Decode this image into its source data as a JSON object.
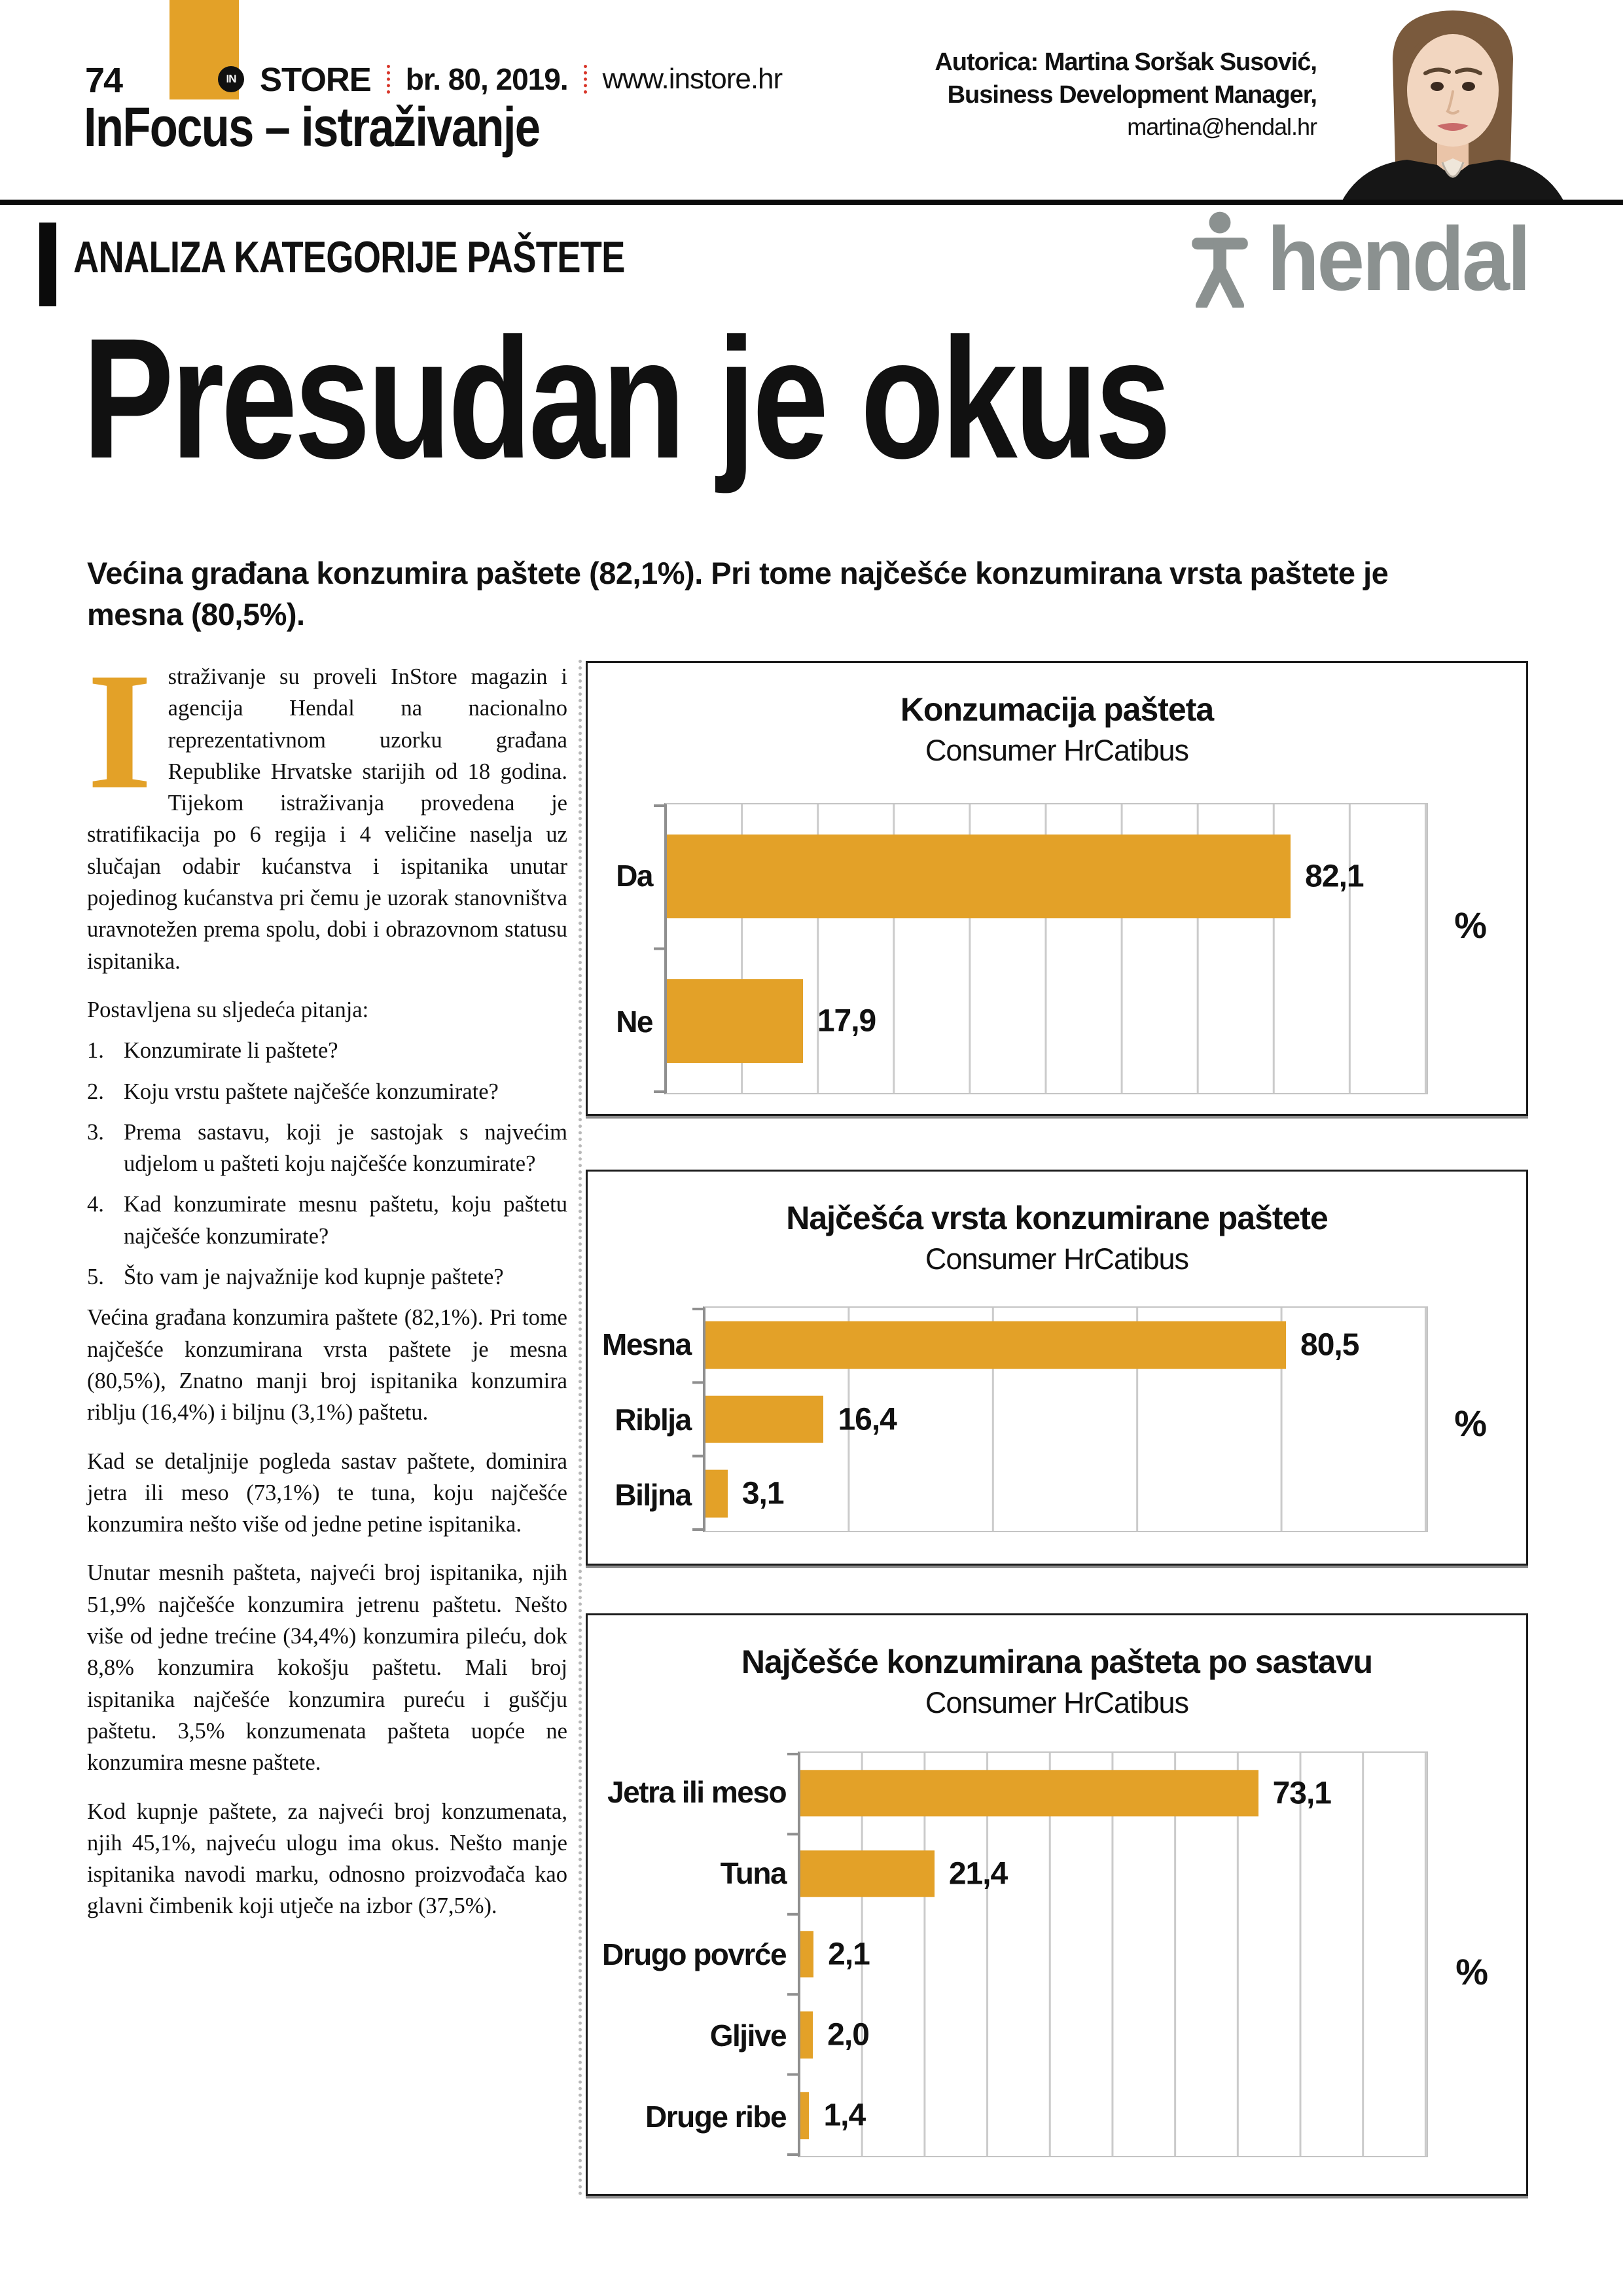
{
  "page": {
    "number": "74",
    "in_badge": "IN",
    "magazine": "STORE",
    "issue": "br. 80, 2019.",
    "website": "www.instore.hr",
    "section": "InFocus – istraživanje",
    "kicker": "ANALIZA KATEGORIJE PAŠTETE",
    "headline": "Presudan je okus",
    "lead": "Većina građana konzumira paštete (82,1%). Pri tome najčešće konzumirana vrsta paštete je mesna (80,5%)."
  },
  "author": {
    "line1": "Autorica: Martina Soršak Susović,",
    "line2": "Business Development Manager,",
    "email": "martina@hendal.hr"
  },
  "brand": {
    "name": "hendal",
    "gray": "#8B9190",
    "orange": "#E3A128",
    "red_dots": "#D8362A"
  },
  "article": {
    "dropcap": "I",
    "p1": "straživanje su proveli InStore magazin i agencija Hendal na nacionalno reprezentativnom uzorku građana Republike Hrvatske starijih od 18 godina. Tijekom istraživanja provedena je stratifikacija po 6 regija i 4 veličine naselja uz slučajan odabir kućanstva i ispitanika unutar pojedinog kućanstva pri čemu je uzorak stanovništva uravnotežen prema spolu, dobi i obrazovnom statusu ispitanika.",
    "questions_intro": "Postavljena su sljedeća pitanja:",
    "questions": [
      {
        "num": "1.",
        "text": "Konzumirate li paštete?"
      },
      {
        "num": "2.",
        "text": "Koju vrstu paštete najčešće konzumirate?"
      },
      {
        "num": "3.",
        "text": "Prema sastavu, koji je sastojak s najvećim udjelom u pašteti koju najčešće konzumirate?"
      },
      {
        "num": "4.",
        "text": "Kad konzumirate mesnu paštetu, koju paštetu najčešće konzumirate?"
      },
      {
        "num": "5.",
        "text": "Što vam je najvažnije kod kupnje paštete?"
      }
    ],
    "p2": "Većina građana konzumira paštete (82,1%). Pri tome najčešće konzumirana vrsta paštete je mesna (80,5%), Znatno manji broj ispitanika konzumira riblju (16,4%) i biljnu (3,1%) paštetu.",
    "p3": "Kad se detaljnije pogleda sastav paštete, dominira jetra ili meso (73,1%) te tuna, koju najčešće konzumira nešto više od jedne petine ispitanika.",
    "p4": "Unutar mesnih pašteta, najveći broj ispitanika, njih 51,9% najčešće konzumira jetrenu paštetu. Nešto više od jedne trećine (34,4%) konzumira pileću, dok 8,8% konzumira kokošju paštetu. Mali broj ispitanika najčešće konzumira pureću i guščju paštetu. 3,5% konzumenata pašteta uopće ne konzumira mesne paštete.",
    "p5": "Kod kupnje paštete, za najveći broj konzumenata, njih 45,1%, najveću ulogu ima okus. Nešto manje ispitanika navodi marku, odnosno proizvođača kao glavni čimbenik koji utječe na izbor (37,5%)."
  },
  "chart_data": [
    {
      "type": "bar",
      "orientation": "horizontal",
      "title": "Konzumacija pašteta",
      "subtitle": "Consumer HrCatibus",
      "categories": [
        "Da",
        "Ne"
      ],
      "values": [
        82.1,
        17.9
      ],
      "value_labels": [
        "82,1",
        "17,9"
      ],
      "xlabel": "%",
      "xlim": [
        0,
        100
      ],
      "gridline_step": 10,
      "grid": true,
      "legend": false,
      "bar_color": "#E3A128"
    },
    {
      "type": "bar",
      "orientation": "horizontal",
      "title": "Najčešća vrsta konzumirane paštete",
      "subtitle": "Consumer HrCatibus",
      "categories": [
        "Mesna",
        "Riblja",
        "Biljna"
      ],
      "values": [
        80.5,
        16.4,
        3.1
      ],
      "value_labels": [
        "80,5",
        "16,4",
        "3,1"
      ],
      "xlabel": "%",
      "xlim": [
        0,
        100
      ],
      "gridline_step": 20,
      "grid": true,
      "legend": false,
      "bar_color": "#E3A128"
    },
    {
      "type": "bar",
      "orientation": "horizontal",
      "title": "Najčešće konzumirana pašteta po sastavu",
      "subtitle": "Consumer HrCatibus",
      "categories": [
        "Jetra ili meso",
        "Tuna",
        "Drugo povrće",
        "Gljive",
        "Druge ribe"
      ],
      "values": [
        73.1,
        21.4,
        2.1,
        2.0,
        1.4
      ],
      "value_labels": [
        "73,1",
        "21,4",
        "2,1",
        "2,0",
        "1,4"
      ],
      "xlabel": "%",
      "xlim": [
        0,
        100
      ],
      "gridline_step": 10,
      "grid": true,
      "legend": false,
      "bar_color": "#E3A128"
    }
  ]
}
